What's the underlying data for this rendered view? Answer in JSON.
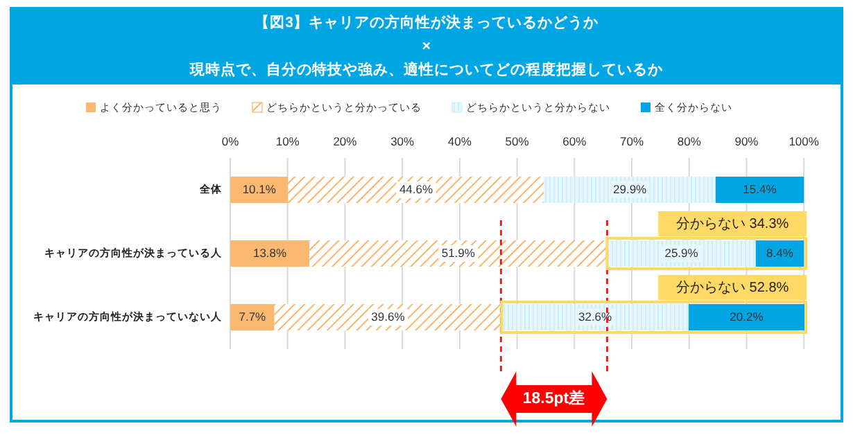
{
  "chart_data": {
    "type": "bar",
    "orientation": "horizontal",
    "stacked": true,
    "title": "【図3】キャリアの方向性が決まっているかどうか\n×\n現時点で、自分の特技や強み、適性についてどの程度把握しているか",
    "categories": [
      "全体",
      "キャリアの方向性が決まっている人",
      "キャリアの方向性が決まっていない人"
    ],
    "series": [
      {
        "name": "よく分かっていると思う",
        "color": "#fbb870",
        "values": [
          10.1,
          13.8,
          7.7
        ],
        "value_labels": [
          "10.1%",
          "13.8%",
          "7.7%"
        ]
      },
      {
        "name": "どちらかというと分かっている",
        "color": "#f9b46a",
        "values": [
          44.6,
          51.9,
          39.6
        ],
        "value_labels": [
          "44.6%",
          "51.9%",
          "39.6%"
        ]
      },
      {
        "name": "どちらかというと分からない",
        "color": "#cdeefb",
        "values": [
          29.9,
          25.9,
          32.6
        ],
        "value_labels": [
          "29.9%",
          "25.9%",
          "32.6%"
        ]
      },
      {
        "name": "全く分からない",
        "color": "#00a6e4",
        "values": [
          15.4,
          8.4,
          20.2
        ],
        "value_labels": [
          "15.4%",
          "8.4%",
          "20.2%"
        ]
      }
    ],
    "xlim": [
      0,
      100.1
    ],
    "xticks": [
      {
        "value": 0,
        "label": "0%"
      },
      {
        "value": 10,
        "label": "10%"
      },
      {
        "value": 20,
        "label": "20%"
      },
      {
        "value": 30,
        "label": "30%"
      },
      {
        "value": 40,
        "label": "40%"
      },
      {
        "value": 50,
        "label": "50%"
      },
      {
        "value": 60,
        "label": "60%"
      },
      {
        "value": 70,
        "label": "70%"
      },
      {
        "value": 80,
        "label": "80%"
      },
      {
        "value": 90,
        "label": "90%"
      },
      {
        "value": 100,
        "label": "100%"
      }
    ],
    "grid": "x",
    "legend": "top",
    "ref_lines": [
      {
        "axis": "x",
        "value": 47.2,
        "color": "#ff0000",
        "line_style": "dashed"
      },
      {
        "axis": "x",
        "value": 65.7,
        "color": "#ff0000",
        "line_style": "dashed"
      }
    ],
    "annotations": [
      {
        "text": "分からない 34.3%",
        "x": 100,
        "y": "キャリアの方向性が決まっている人"
      },
      {
        "text": "分からない 52.8%",
        "x": 100,
        "y": "キャリアの方向性が決まっていない人"
      },
      "18.5pt差"
    ]
  }
}
